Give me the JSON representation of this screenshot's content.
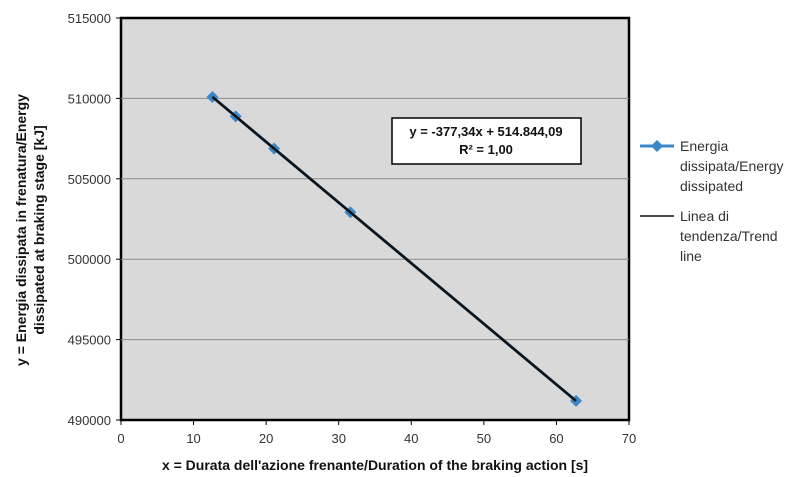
{
  "chart_data": {
    "type": "scatter",
    "x": [
      12.6,
      15.8,
      21.1,
      31.6,
      62.7
    ],
    "series": [
      {
        "name": "Energia dissipata/Energy dissipated",
        "legend_lines": [
          "Energia",
          "dissipata/Energy",
          "dissipated"
        ],
        "values": [
          510090,
          508880,
          506880,
          502920,
          491190
        ],
        "color": "#3a87c8",
        "marker": "diamond"
      }
    ],
    "trendline": {
      "name": "Linea di tendenza/Trend line",
      "legend_lines": [
        "Linea di",
        "tendenza/Trend",
        "line"
      ],
      "slope": -377.34,
      "intercept": 514844.09,
      "x_range": [
        12.6,
        62.7
      ],
      "color": "#111111"
    },
    "equation": {
      "line1": "y = -377,34x + 514.844,09",
      "line2": "R² = 1,00"
    },
    "xlabel": "x = Durata dell'azione frenante/Duration of the braking action [s]",
    "ylabel_lines": [
      "y = Energia dissipata in frenatura/Energy",
      "dissipated at braking stage [kJ]"
    ],
    "xlim": [
      0,
      70
    ],
    "ylim": [
      490000,
      515000
    ],
    "xticks": [
      "0",
      "10",
      "20",
      "30",
      "40",
      "50",
      "60",
      "70"
    ],
    "yticks": [
      "490000",
      "495000",
      "500000",
      "505000",
      "510000",
      "515000"
    ],
    "grid": true,
    "plot_background": "#d9d9d9",
    "legend_position": "right"
  }
}
